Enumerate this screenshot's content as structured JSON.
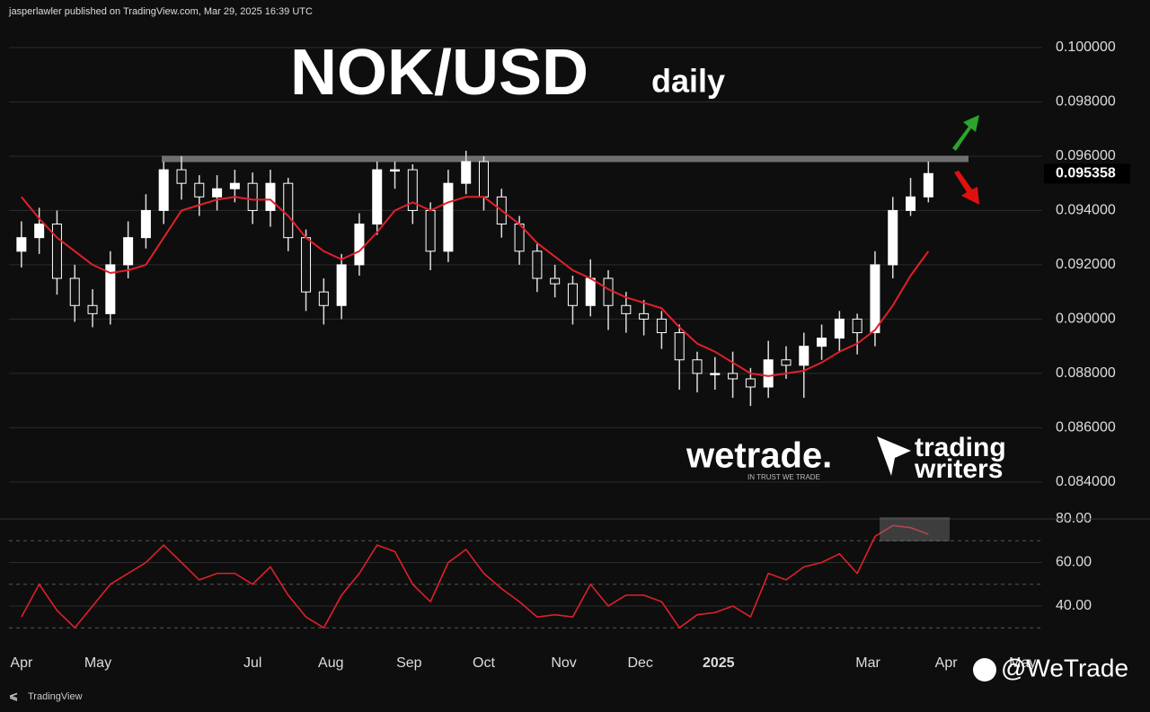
{
  "header": "jasperlawler published on TradingView.com, Mar 29, 2025 16:39 UTC",
  "logos": {
    "wetrade": "wetrade.",
    "wetrade_tagline": "IN TRUST WE TRADE",
    "tw_line1": "trading",
    "tw_line2": "writers",
    "watermark": "@WeTrade"
  },
  "footer": "TradingView",
  "chart_data": [
    {
      "type": "candlestick",
      "title": "NOK/USD",
      "subtitle": "daily",
      "open": [
        0.0925,
        0.093,
        0.0935,
        0.0915,
        0.0905,
        0.0902,
        0.092,
        0.093,
        0.094,
        0.0955,
        0.095,
        0.0945,
        0.0948,
        0.095,
        0.094,
        0.095,
        0.093,
        0.091,
        0.0905,
        0.092,
        0.0935,
        0.0955,
        0.0955,
        0.094,
        0.0925,
        0.095,
        0.0958,
        0.0945,
        0.0935,
        0.0925,
        0.0915,
        0.0913,
        0.0905,
        0.0915,
        0.0905,
        0.0902,
        0.09,
        0.0895,
        0.0885,
        0.088,
        0.088,
        0.0878,
        0.0875,
        0.0885,
        0.0883,
        0.089,
        0.0893,
        0.09,
        0.0895,
        0.092,
        0.094,
        0.0945
      ],
      "high": [
        0.0936,
        0.0941,
        0.094,
        0.092,
        0.0911,
        0.0925,
        0.0936,
        0.0946,
        0.0958,
        0.096,
        0.0953,
        0.0953,
        0.0955,
        0.0954,
        0.0955,
        0.0952,
        0.0933,
        0.0915,
        0.0924,
        0.0939,
        0.0958,
        0.0958,
        0.0957,
        0.0943,
        0.0955,
        0.0962,
        0.096,
        0.0948,
        0.0938,
        0.0928,
        0.092,
        0.0916,
        0.0922,
        0.0918,
        0.091,
        0.0907,
        0.0903,
        0.0898,
        0.0888,
        0.0886,
        0.0888,
        0.0882,
        0.0892,
        0.089,
        0.0895,
        0.0898,
        0.0903,
        0.0902,
        0.0925,
        0.0945,
        0.0952,
        0.0958
      ],
      "low": [
        0.0919,
        0.0924,
        0.0909,
        0.0899,
        0.0897,
        0.0898,
        0.0915,
        0.0926,
        0.0935,
        0.0944,
        0.0938,
        0.094,
        0.0943,
        0.0935,
        0.0934,
        0.0925,
        0.0903,
        0.0898,
        0.09,
        0.0916,
        0.0931,
        0.0948,
        0.0935,
        0.0918,
        0.0921,
        0.0946,
        0.094,
        0.093,
        0.092,
        0.091,
        0.0908,
        0.0898,
        0.0901,
        0.0896,
        0.0895,
        0.0894,
        0.0889,
        0.0874,
        0.0873,
        0.0874,
        0.0871,
        0.0868,
        0.0871,
        0.0878,
        0.0871,
        0.0885,
        0.0888,
        0.0887,
        0.089,
        0.0915,
        0.0938,
        0.0943
      ],
      "close": [
        0.093,
        0.0935,
        0.0915,
        0.0905,
        0.0902,
        0.092,
        0.093,
        0.094,
        0.0955,
        0.095,
        0.0945,
        0.0948,
        0.095,
        0.094,
        0.095,
        0.093,
        0.091,
        0.0905,
        0.092,
        0.0935,
        0.0955,
        0.0955,
        0.094,
        0.0925,
        0.095,
        0.0958,
        0.0945,
        0.0935,
        0.0925,
        0.0915,
        0.0913,
        0.0905,
        0.0915,
        0.0905,
        0.0902,
        0.09,
        0.0895,
        0.0885,
        0.088,
        0.088,
        0.0878,
        0.0875,
        0.0885,
        0.0883,
        0.089,
        0.0893,
        0.09,
        0.0895,
        0.092,
        0.094,
        0.0945,
        0.09536
      ],
      "ma": {
        "color": "#e0202a",
        "values": [
          0.0945,
          0.0937,
          0.093,
          0.0925,
          0.092,
          0.0917,
          0.0918,
          0.092,
          0.093,
          0.094,
          0.0942,
          0.0944,
          0.0945,
          0.0944,
          0.0944,
          0.0938,
          0.093,
          0.0925,
          0.0922,
          0.0925,
          0.0932,
          0.094,
          0.0943,
          0.094,
          0.0943,
          0.0945,
          0.0945,
          0.094,
          0.0935,
          0.0928,
          0.0923,
          0.0918,
          0.0915,
          0.0911,
          0.0908,
          0.0906,
          0.0904,
          0.0897,
          0.0891,
          0.0888,
          0.0884,
          0.088,
          0.0879,
          0.088,
          0.0881,
          0.0884,
          0.0888,
          0.0891,
          0.0896,
          0.0905,
          0.0916,
          0.0925
        ]
      },
      "last_price": 0.095358,
      "resistance": 0.0959,
      "xlim": [
        -0.7,
        57.4
      ],
      "xticks": [
        {
          "value": 0,
          "label": "Apr"
        },
        {
          "value": 4.3,
          "label": "May"
        },
        {
          "value": 13,
          "label": "Jul"
        },
        {
          "value": 17.4,
          "label": "Aug"
        },
        {
          "value": 21.8,
          "label": "Sep"
        },
        {
          "value": 26,
          "label": "Oct"
        },
        {
          "value": 30.5,
          "label": "Nov"
        },
        {
          "value": 34.8,
          "label": "Dec"
        },
        {
          "value": 39.2,
          "label": "2025"
        },
        {
          "value": 47.6,
          "label": "Mar"
        },
        {
          "value": 52,
          "label": "Apr"
        },
        {
          "value": 56.3,
          "label": "May"
        }
      ],
      "ylim": [
        0.08264,
        0.10109
      ],
      "yticks": [
        {
          "value": 0.1,
          "label": "0.100000"
        },
        {
          "value": 0.098,
          "label": "0.098000"
        },
        {
          "value": 0.096,
          "label": "0.096000"
        },
        {
          "value": 0.094,
          "label": "0.094000"
        },
        {
          "value": 0.092,
          "label": "0.092000"
        },
        {
          "value": 0.09,
          "label": "0.090000"
        },
        {
          "value": 0.088,
          "label": "0.088000"
        },
        {
          "value": 0.086,
          "label": "0.086000"
        },
        {
          "value": 0.084,
          "label": "0.084000"
        }
      ],
      "grid": true
    },
    {
      "type": "line",
      "color": "#e0202a",
      "values": [
        35,
        50,
        38,
        30,
        40,
        50,
        55,
        60,
        68,
        60,
        52,
        55,
        55,
        50,
        58,
        45,
        35,
        30,
        45,
        55,
        68,
        65,
        50,
        42,
        60,
        66,
        55,
        48,
        42,
        35,
        36,
        35,
        50,
        40,
        45,
        45,
        42,
        30,
        36,
        37,
        40,
        35,
        55,
        52,
        58,
        60,
        64,
        55,
        72,
        77,
        76,
        73
      ],
      "levels": [
        70,
        50,
        30
      ],
      "ylim": [
        23.5,
        80
      ],
      "yticks": [
        {
          "value": 80,
          "label": "80.00"
        },
        {
          "value": 60,
          "label": "60.00"
        },
        {
          "value": 40,
          "label": "40.00"
        }
      ]
    }
  ]
}
